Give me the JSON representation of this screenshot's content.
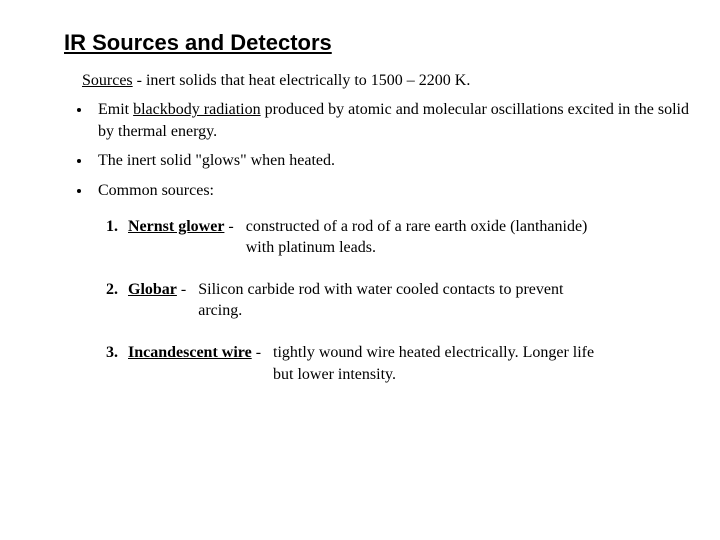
{
  "title": "IR Sources and Detectors",
  "sources_heading": "Sources",
  "sources_intro": " -  inert solids that heat electrically to 1500 – 2200 K.",
  "bullets": {
    "b1_pre": "Emit ",
    "b1_u": "blackbody radiation",
    "b1_post": " produced by atomic and molecular oscillations excited in the solid by thermal energy.",
    "b2": "The inert solid \"glows\" when heated.",
    "b3": "Common sources:"
  },
  "items": {
    "i1_label": "Nernst glower",
    "i1_dash": " -  ",
    "i1_d1": "constructed of a rod of a rare earth oxide (lanthanide)",
    "i1_d2": "with platinum leads.",
    "i2_label": "Globar",
    "i2_dash": " -  ",
    "i2_d1": "Silicon carbide rod with water cooled contacts to prevent",
    "i2_d2": "arcing.",
    "i3_label": "Incandescent wire",
    "i3_dash": " -  ",
    "i3_d1": "tightly wound wire heated electrically. Longer life",
    "i3_d2": "but lower intensity."
  }
}
